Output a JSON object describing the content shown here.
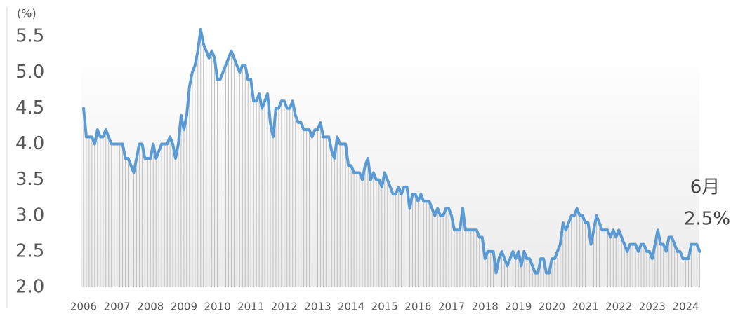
{
  "chart_data": {
    "type": "line",
    "y_label": "(%)",
    "annotations": [
      "6月",
      "2.5%"
    ],
    "categories": [
      "2006",
      null,
      null,
      null,
      null,
      null,
      null,
      null,
      null,
      null,
      null,
      null,
      "2007",
      null,
      null,
      null,
      null,
      null,
      null,
      null,
      null,
      null,
      null,
      null,
      "2008",
      null,
      null,
      null,
      null,
      null,
      null,
      null,
      null,
      null,
      null,
      null,
      "2009",
      null,
      null,
      null,
      null,
      null,
      null,
      null,
      null,
      null,
      null,
      null,
      "2010",
      null,
      null,
      null,
      null,
      null,
      null,
      null,
      null,
      null,
      null,
      null,
      "2011",
      null,
      null,
      null,
      null,
      null,
      null,
      null,
      null,
      null,
      null,
      null,
      "2012",
      null,
      null,
      null,
      null,
      null,
      null,
      null,
      null,
      null,
      null,
      null,
      "2013",
      null,
      null,
      null,
      null,
      null,
      null,
      null,
      null,
      null,
      null,
      null,
      "2014",
      null,
      null,
      null,
      null,
      null,
      null,
      null,
      null,
      null,
      null,
      null,
      "2015",
      null,
      null,
      null,
      null,
      null,
      null,
      null,
      null,
      null,
      null,
      null,
      "2016",
      null,
      null,
      null,
      null,
      null,
      null,
      null,
      null,
      null,
      null,
      null,
      "2017",
      null,
      null,
      null,
      null,
      null,
      null,
      null,
      null,
      null,
      null,
      null,
      "2018",
      null,
      null,
      null,
      null,
      null,
      null,
      null,
      null,
      null,
      null,
      null,
      "2019",
      null,
      null,
      null,
      null,
      null,
      null,
      null,
      null,
      null,
      null,
      null,
      "2020",
      null,
      null,
      null,
      null,
      null,
      null,
      null,
      null,
      null,
      null,
      null,
      "2021",
      null,
      null,
      null,
      null,
      null,
      null,
      null,
      null,
      null,
      null,
      null,
      "2022",
      null,
      null,
      null,
      null,
      null,
      null,
      null,
      null,
      null,
      null,
      null,
      "2023",
      null,
      null,
      null,
      null,
      null,
      null,
      null,
      null,
      null,
      null,
      null,
      "2024",
      null,
      null,
      null,
      null,
      null
    ],
    "values": [
      4.5,
      4.1,
      4.1,
      4.1,
      4.0,
      4.2,
      4.1,
      4.1,
      4.2,
      4.1,
      4.0,
      4.0,
      4.0,
      4.0,
      4.0,
      3.8,
      3.8,
      3.7,
      3.6,
      3.8,
      4.0,
      4.0,
      3.8,
      3.8,
      3.8,
      4.0,
      3.8,
      3.9,
      4.0,
      4.0,
      4.0,
      4.1,
      4.0,
      3.8,
      4.0,
      4.4,
      4.2,
      4.4,
      4.8,
      5.0,
      5.1,
      5.3,
      5.6,
      5.4,
      5.3,
      5.2,
      5.3,
      5.2,
      4.9,
      4.9,
      5.0,
      5.1,
      5.2,
      5.3,
      5.2,
      5.1,
      5.0,
      5.1,
      5.1,
      4.9,
      4.9,
      4.6,
      4.6,
      4.7,
      4.5,
      4.6,
      4.7,
      4.3,
      4.1,
      4.5,
      4.5,
      4.6,
      4.6,
      4.5,
      4.5,
      4.6,
      4.4,
      4.3,
      4.3,
      4.2,
      4.2,
      4.2,
      4.1,
      4.2,
      4.2,
      4.3,
      4.1,
      4.1,
      4.1,
      3.9,
      3.8,
      4.1,
      4.0,
      4.0,
      4.0,
      3.7,
      3.7,
      3.6,
      3.6,
      3.6,
      3.5,
      3.7,
      3.8,
      3.5,
      3.6,
      3.5,
      3.5,
      3.4,
      3.6,
      3.5,
      3.4,
      3.3,
      3.3,
      3.4,
      3.3,
      3.4,
      3.4,
      3.1,
      3.3,
      3.3,
      3.2,
      3.3,
      3.2,
      3.2,
      3.2,
      3.1,
      3.0,
      3.1,
      3.0,
      3.0,
      3.1,
      3.1,
      3.0,
      2.8,
      2.8,
      2.8,
      3.1,
      2.8,
      2.8,
      2.8,
      2.8,
      2.8,
      2.7,
      2.7,
      2.4,
      2.5,
      2.5,
      2.5,
      2.2,
      2.4,
      2.5,
      2.4,
      2.3,
      2.4,
      2.5,
      2.4,
      2.5,
      2.3,
      2.5,
      2.4,
      2.4,
      2.3,
      2.2,
      2.2,
      2.4,
      2.4,
      2.2,
      2.2,
      2.4,
      2.4,
      2.5,
      2.6,
      2.9,
      2.8,
      2.9,
      3.0,
      3.0,
      3.1,
      3.0,
      3.0,
      2.9,
      2.9,
      2.6,
      2.8,
      3.0,
      2.9,
      2.8,
      2.8,
      2.8,
      2.7,
      2.8,
      2.7,
      2.8,
      2.7,
      2.6,
      2.5,
      2.6,
      2.6,
      2.6,
      2.5,
      2.6,
      2.6,
      2.5,
      2.5,
      2.4,
      2.6,
      2.8,
      2.6,
      2.6,
      2.5,
      2.7,
      2.7,
      2.6,
      2.5,
      2.5,
      2.4,
      2.4,
      2.4,
      2.6,
      2.6,
      2.6,
      2.5
    ],
    "color": "#5b9bd5",
    "drop_line_color": "#bfbfbf",
    "ylim": [
      2,
      5.6
    ],
    "yticks": [
      {
        "value": 2,
        "label": "2.0"
      },
      2.5,
      {
        "value": 3,
        "label": "3.0"
      },
      3.5,
      {
        "value": 4,
        "label": "4.0"
      },
      4.5,
      {
        "value": 5,
        "label": "5.0"
      },
      5.5
    ]
  }
}
